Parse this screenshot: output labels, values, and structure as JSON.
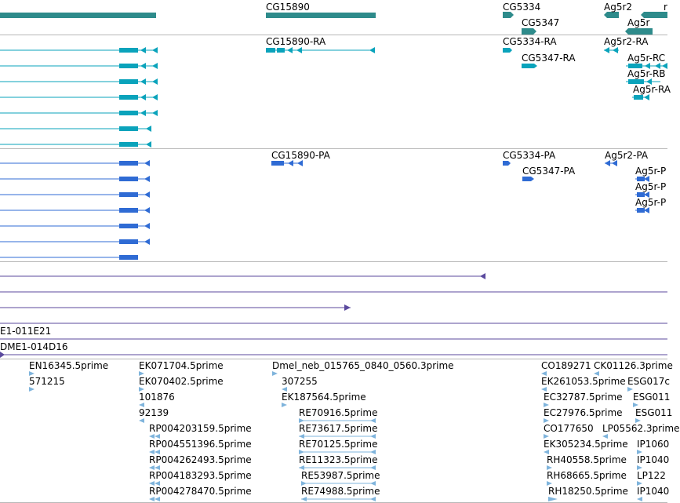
{
  "genes": {
    "cg15890": "CG15890",
    "cg5334": "CG5334",
    "cg5347": "CG5347",
    "ag5r2": "Ag5r2",
    "ag5r": "Ag5r",
    "edge": "r"
  },
  "transcripts": {
    "cg15890_ra": "CG15890-RA",
    "cg5334_ra": "CG5334-RA",
    "cg5347_ra": "CG5347-RA",
    "ag5r2_ra": "Ag5r2-RA",
    "ag5r_rc": "Ag5r-RC",
    "ag5r_rb": "Ag5r-RB",
    "ag5r_ra": "Ag5r-RA"
  },
  "proteins": {
    "cg15890_pa": "CG15890-PA",
    "cg5334_pa": "CG5334-PA",
    "cg5347_pa": "CG5347-PA",
    "ag5r2_pa": "Ag5r2-PA",
    "ag5r_p1": "Ag5r-P",
    "ag5r_p2": "Ag5r-P",
    "ag5r_p3": "Ag5r-P"
  },
  "clones": {
    "c1": "E1-011E21",
    "c2": "DME1-014D16"
  },
  "ests": {
    "col1": [
      "EN16345.5prime",
      "571215"
    ],
    "col2": [
      "EK071704.5prime",
      "EK070402.5prime",
      "101876",
      "92139",
      "RP004203159.5prime",
      "RP004551396.5prime",
      "RP004262493.5prime",
      "RP004183293.5prime",
      "RP004278470.5prime"
    ],
    "col3": [
      "Dmel_neb_015765_0840_0560.3prime",
      "307255",
      "EK187564.5prime",
      "RE70916.5prime",
      "RE73617.5prime",
      "RE70125.5prime",
      "RE11323.5prime",
      "RE53987.5prime",
      "RE74988.5prime"
    ],
    "col4": [
      "CO189271",
      "EK261053.5prime",
      "EC32787.5prime",
      "EC27976.5prime",
      "CO177650",
      "EK305234.5prime",
      "RH40558.5prime",
      "RH68665.5prime",
      "RH18250.5prime"
    ],
    "col5": [
      "CK01126.3prime",
      "ESG017c",
      "ESG011",
      "ESG011",
      "LP05562.3prime",
      "IP1060",
      "IP1040",
      "LP122",
      "IP1040"
    ]
  },
  "colors": {
    "gene": "#2e8b8b",
    "transcript": "#0aa3bb",
    "protein": "#2f6bd4",
    "clone": "#5b4a9e",
    "est": "#7fb4dc",
    "divider": "#b8b8b8"
  }
}
